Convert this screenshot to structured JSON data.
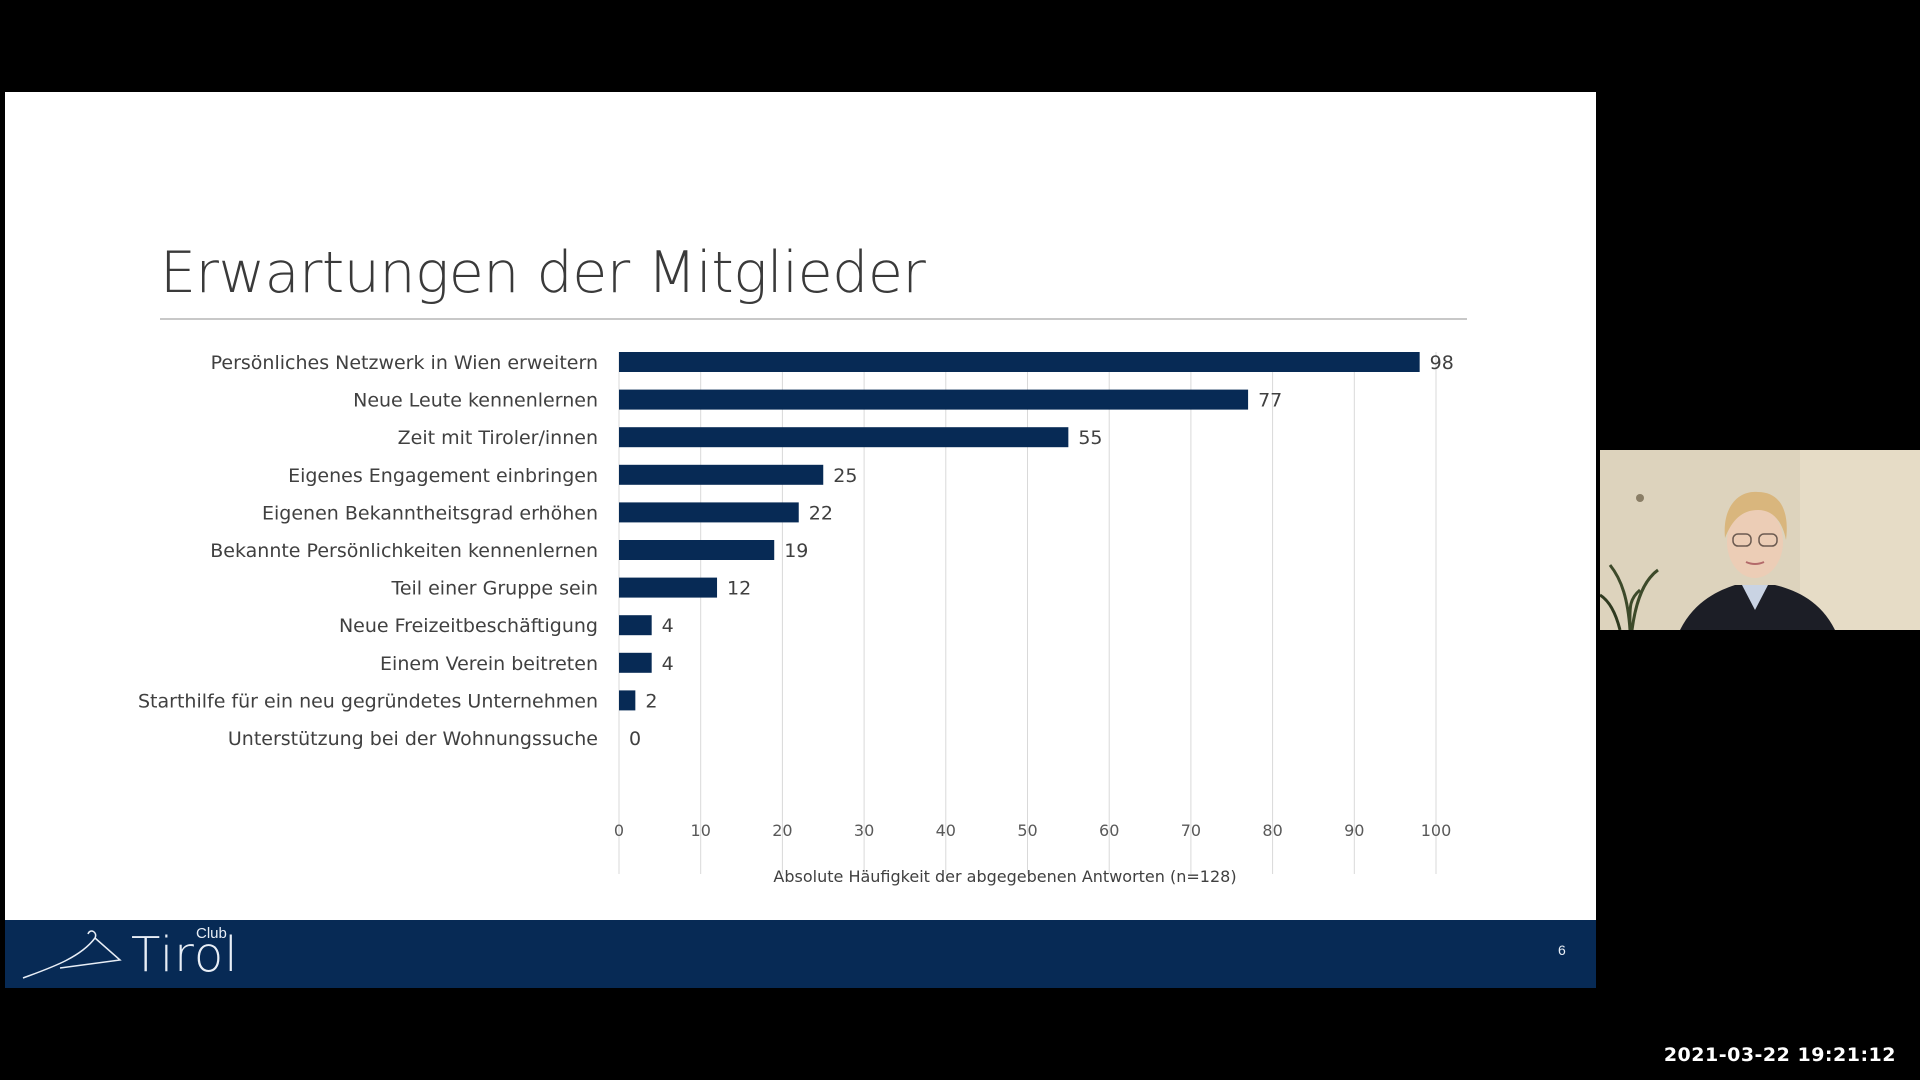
{
  "slide": {
    "title": "Erwartungen der Mitglieder",
    "page_number": "6",
    "logo": {
      "club": "Club",
      "tirol": "Tirol"
    }
  },
  "overlay": {
    "timestamp": "2021-03-22 19:21:12"
  },
  "colors": {
    "bar": "#072a55",
    "footer": "#072a55",
    "background": "#000000"
  },
  "chart_data": {
    "type": "bar",
    "orientation": "horizontal",
    "categories": [
      "Persönliches Netzwerk in Wien erweitern",
      "Neue Leute kennenlernen",
      "Zeit mit Tiroler/innen",
      "Eigenes Engagement einbringen",
      "Eigenen Bekanntheitsgrad erhöhen",
      "Bekannte Persönlichkeiten kennenlernen",
      "Teil einer Gruppe sein",
      "Neue Freizeitbeschäftigung",
      "Einem Verein beitreten",
      "Starthilfe für ein neu gegründetes Unternehmen",
      "Unterstützung bei der Wohnungssuche"
    ],
    "values": [
      98,
      77,
      55,
      25,
      22,
      19,
      12,
      4,
      4,
      2,
      0
    ],
    "xlabel": "Absolute Häufigkeit der abgegebenen Antworten (n=128)",
    "xlim": [
      0,
      100
    ],
    "xticks": [
      0,
      10,
      20,
      30,
      40,
      50,
      60,
      70,
      80,
      90,
      100
    ],
    "grid": true,
    "data_labels": true
  }
}
